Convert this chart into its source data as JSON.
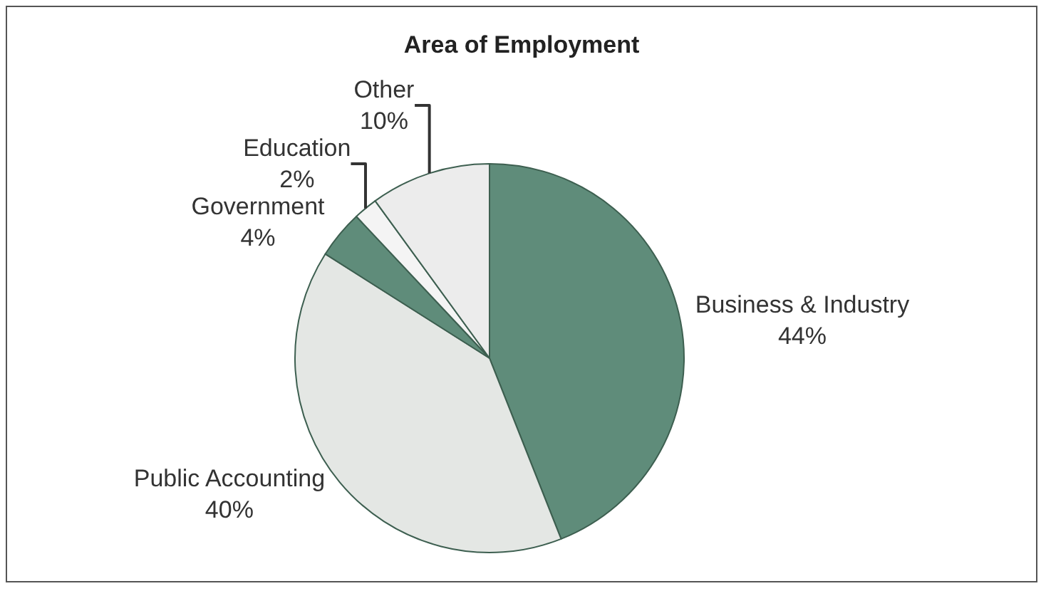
{
  "chart_data": {
    "type": "pie",
    "title": "Area of Employment",
    "categories": [
      "Business & Industry",
      "Public Accounting",
      "Government",
      "Education",
      "Other"
    ],
    "values": [
      44,
      40,
      4,
      2,
      10
    ],
    "value_labels": [
      "44%",
      "40%",
      "4%",
      "2%",
      "10%"
    ],
    "colors": [
      "#5f8c7a",
      "#e4e7e4",
      "#5f8c7a",
      "#f4f4f4",
      "#ececec"
    ],
    "legend": false
  }
}
